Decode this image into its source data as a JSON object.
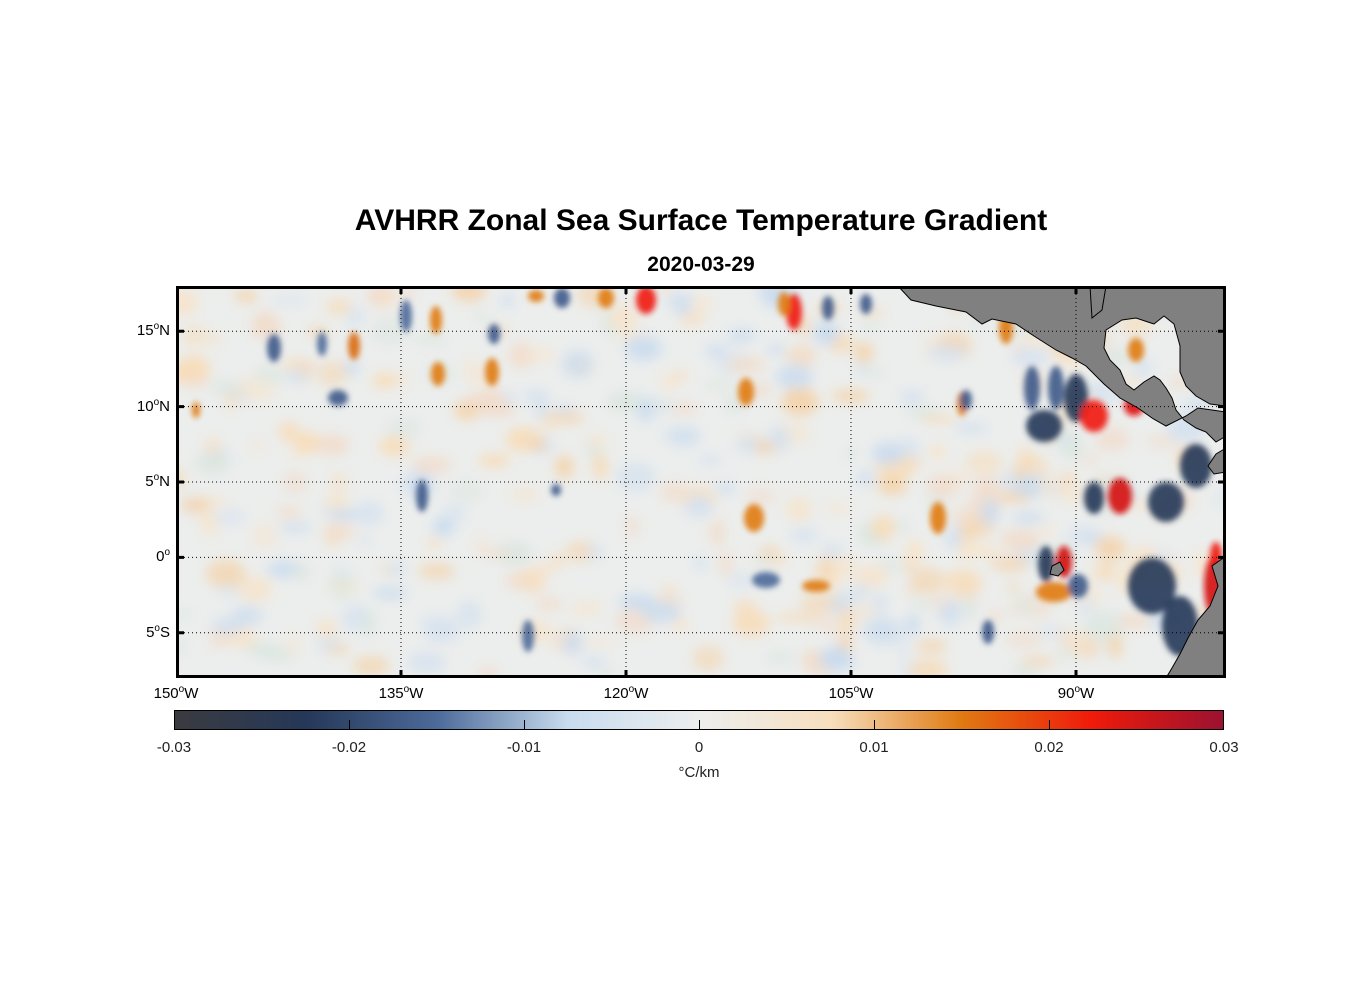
{
  "title": "AVHRR Zonal Sea Surface Temperature Gradient",
  "subtitle": "2020-03-29",
  "map": {
    "lon_range": [
      -150,
      -80
    ],
    "lat_range": [
      -8,
      18
    ],
    "grid": true,
    "land_color": "#808080",
    "lat_ticks": [
      {
        "value": 15,
        "label_num": "15",
        "label_hemi": "N"
      },
      {
        "value": 10,
        "label_num": "10",
        "label_hemi": "N"
      },
      {
        "value": 5,
        "label_num": "5",
        "label_hemi": "N"
      },
      {
        "value": 0,
        "label_num": "0",
        "label_hemi": ""
      },
      {
        "value": -5,
        "label_num": "5",
        "label_hemi": "S"
      }
    ],
    "lon_ticks": [
      {
        "value": -150,
        "label_num": "150",
        "label_hemi": "W"
      },
      {
        "value": -135,
        "label_num": "135",
        "label_hemi": "W"
      },
      {
        "value": -120,
        "label_num": "120",
        "label_hemi": "W"
      },
      {
        "value": -105,
        "label_num": "105",
        "label_hemi": "W"
      },
      {
        "value": -90,
        "label_num": "90",
        "label_hemi": "W"
      }
    ]
  },
  "colorbar": {
    "range": [
      -0.03,
      0.03
    ],
    "ticks": [
      "-0.03",
      "-0.02",
      "-0.01",
      "0",
      "0.01",
      "0.02",
      "0.03"
    ],
    "tick_values": [
      -0.03,
      -0.02,
      -0.01,
      0,
      0.01,
      0.02,
      0.03
    ],
    "unit": "°C/km",
    "colors": [
      "#3a3b40",
      "#253858",
      "#4c6a9a",
      "#c8dcee",
      "#eceeee",
      "#f7dfbf",
      "#e07a12",
      "#f01a0a",
      "#9c1230"
    ]
  }
}
